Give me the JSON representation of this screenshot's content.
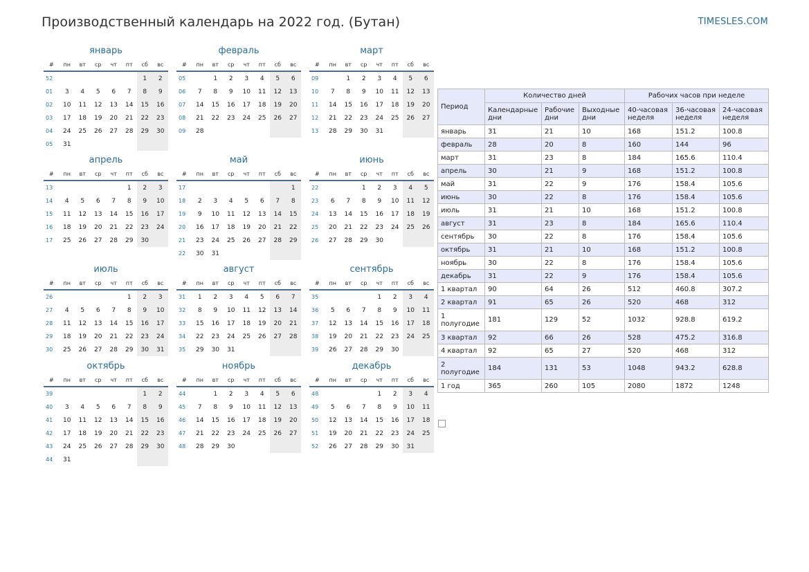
{
  "header": {
    "title": "Производственный календарь на 2022 год. (Бутан)",
    "site": "TIMESLES.COM"
  },
  "weekday_headers": [
    "#",
    "пн",
    "вт",
    "ср",
    "чт",
    "пт",
    "сб",
    "вс"
  ],
  "months": [
    {
      "name": "январь",
      "weeks": [
        [
          "52",
          "",
          "",
          "",
          "",
          "",
          "1",
          "2"
        ],
        [
          "01",
          "3",
          "4",
          "5",
          "6",
          "7",
          "8",
          "9"
        ],
        [
          "02",
          "10",
          "11",
          "12",
          "13",
          "14",
          "15",
          "16"
        ],
        [
          "03",
          "17",
          "18",
          "19",
          "20",
          "21",
          "22",
          "23"
        ],
        [
          "04",
          "24",
          "25",
          "26",
          "27",
          "28",
          "29",
          "30"
        ],
        [
          "05",
          "31",
          "",
          "",
          "",
          "",
          "",
          ""
        ]
      ]
    },
    {
      "name": "февраль",
      "weeks": [
        [
          "05",
          "",
          "1",
          "2",
          "3",
          "4",
          "5",
          "6"
        ],
        [
          "06",
          "7",
          "8",
          "9",
          "10",
          "11",
          "12",
          "13"
        ],
        [
          "07",
          "14",
          "15",
          "16",
          "17",
          "18",
          "19",
          "20"
        ],
        [
          "08",
          "21",
          "22",
          "23",
          "24",
          "25",
          "26",
          "27"
        ],
        [
          "09",
          "28",
          "",
          "",
          "",
          "",
          "",
          ""
        ]
      ]
    },
    {
      "name": "март",
      "weeks": [
        [
          "09",
          "",
          "1",
          "2",
          "3",
          "4",
          "5",
          "6"
        ],
        [
          "10",
          "7",
          "8",
          "9",
          "10",
          "11",
          "12",
          "13"
        ],
        [
          "11",
          "14",
          "15",
          "16",
          "17",
          "18",
          "19",
          "20"
        ],
        [
          "12",
          "21",
          "22",
          "23",
          "24",
          "25",
          "26",
          "27"
        ],
        [
          "13",
          "28",
          "29",
          "30",
          "31",
          "",
          "",
          ""
        ]
      ]
    },
    {
      "name": "апрель",
      "weeks": [
        [
          "13",
          "",
          "",
          "",
          "",
          "1",
          "2",
          "3"
        ],
        [
          "14",
          "4",
          "5",
          "6",
          "7",
          "8",
          "9",
          "10"
        ],
        [
          "15",
          "11",
          "12",
          "13",
          "14",
          "15",
          "16",
          "17"
        ],
        [
          "16",
          "18",
          "19",
          "20",
          "21",
          "22",
          "23",
          "24"
        ],
        [
          "17",
          "25",
          "26",
          "27",
          "28",
          "29",
          "30",
          ""
        ]
      ]
    },
    {
      "name": "май",
      "weeks": [
        [
          "17",
          "",
          "",
          "",
          "",
          "",
          "",
          "1"
        ],
        [
          "18",
          "2",
          "3",
          "4",
          "5",
          "6",
          "7",
          "8"
        ],
        [
          "19",
          "9",
          "10",
          "11",
          "12",
          "13",
          "14",
          "15"
        ],
        [
          "20",
          "16",
          "17",
          "18",
          "19",
          "20",
          "21",
          "22"
        ],
        [
          "21",
          "23",
          "24",
          "25",
          "26",
          "27",
          "28",
          "29"
        ],
        [
          "22",
          "30",
          "31",
          "",
          "",
          "",
          "",
          ""
        ]
      ]
    },
    {
      "name": "июнь",
      "weeks": [
        [
          "22",
          "",
          "",
          "1",
          "2",
          "3",
          "4",
          "5"
        ],
        [
          "23",
          "6",
          "7",
          "8",
          "9",
          "10",
          "11",
          "12"
        ],
        [
          "24",
          "13",
          "14",
          "15",
          "16",
          "17",
          "18",
          "19"
        ],
        [
          "25",
          "20",
          "21",
          "22",
          "23",
          "24",
          "25",
          "26"
        ],
        [
          "26",
          "27",
          "28",
          "29",
          "30",
          "",
          "",
          ""
        ]
      ]
    },
    {
      "name": "июль",
      "weeks": [
        [
          "26",
          "",
          "",
          "",
          "",
          "1",
          "2",
          "3"
        ],
        [
          "27",
          "4",
          "5",
          "6",
          "7",
          "8",
          "9",
          "10"
        ],
        [
          "28",
          "11",
          "12",
          "13",
          "14",
          "15",
          "16",
          "17"
        ],
        [
          "29",
          "18",
          "19",
          "20",
          "21",
          "22",
          "23",
          "24"
        ],
        [
          "30",
          "25",
          "26",
          "27",
          "28",
          "29",
          "30",
          "31"
        ]
      ]
    },
    {
      "name": "август",
      "weeks": [
        [
          "31",
          "1",
          "2",
          "3",
          "4",
          "5",
          "6",
          "7"
        ],
        [
          "32",
          "8",
          "9",
          "10",
          "11",
          "12",
          "13",
          "14"
        ],
        [
          "33",
          "15",
          "16",
          "17",
          "18",
          "19",
          "20",
          "21"
        ],
        [
          "34",
          "22",
          "23",
          "24",
          "25",
          "26",
          "27",
          "28"
        ],
        [
          "35",
          "29",
          "30",
          "31",
          "",
          "",
          "",
          ""
        ]
      ]
    },
    {
      "name": "сентябрь",
      "weeks": [
        [
          "35",
          "",
          "",
          "",
          "1",
          "2",
          "3",
          "4"
        ],
        [
          "36",
          "5",
          "6",
          "7",
          "8",
          "9",
          "10",
          "11"
        ],
        [
          "37",
          "12",
          "13",
          "14",
          "15",
          "16",
          "17",
          "18"
        ],
        [
          "38",
          "19",
          "20",
          "21",
          "22",
          "23",
          "24",
          "25"
        ],
        [
          "39",
          "26",
          "27",
          "28",
          "29",
          "30",
          "",
          ""
        ]
      ]
    },
    {
      "name": "октябрь",
      "weeks": [
        [
          "39",
          "",
          "",
          "",
          "",
          "",
          "1",
          "2"
        ],
        [
          "40",
          "3",
          "4",
          "5",
          "6",
          "7",
          "8",
          "9"
        ],
        [
          "41",
          "10",
          "11",
          "12",
          "13",
          "14",
          "15",
          "16"
        ],
        [
          "42",
          "17",
          "18",
          "19",
          "20",
          "21",
          "22",
          "23"
        ],
        [
          "43",
          "24",
          "25",
          "26",
          "27",
          "28",
          "29",
          "30"
        ],
        [
          "44",
          "31",
          "",
          "",
          "",
          "",
          "",
          ""
        ]
      ]
    },
    {
      "name": "ноябрь",
      "weeks": [
        [
          "44",
          "",
          "1",
          "2",
          "3",
          "4",
          "5",
          "6"
        ],
        [
          "45",
          "7",
          "8",
          "9",
          "10",
          "11",
          "12",
          "13"
        ],
        [
          "46",
          "14",
          "15",
          "16",
          "17",
          "18",
          "19",
          "20"
        ],
        [
          "47",
          "21",
          "22",
          "23",
          "24",
          "25",
          "26",
          "27"
        ],
        [
          "48",
          "28",
          "29",
          "30",
          "",
          "",
          "",
          ""
        ]
      ]
    },
    {
      "name": "декабрь",
      "weeks": [
        [
          "48",
          "",
          "",
          "",
          "1",
          "2",
          "3",
          "4"
        ],
        [
          "49",
          "5",
          "6",
          "7",
          "8",
          "9",
          "10",
          "11"
        ],
        [
          "50",
          "12",
          "13",
          "14",
          "15",
          "16",
          "17",
          "18"
        ],
        [
          "51",
          "19",
          "20",
          "21",
          "22",
          "23",
          "24",
          "25"
        ],
        [
          "52",
          "26",
          "27",
          "28",
          "29",
          "30",
          "31",
          ""
        ]
      ]
    }
  ],
  "summary": {
    "period_label": "Период",
    "group_days": "Количество дней",
    "group_hours": "Рабочих часов при неделе",
    "columns": [
      "Календарные дни",
      "Рабочие дни",
      "Выходные дни",
      "40-часовая неделя",
      "36-часовая неделя",
      "24-часовая неделя"
    ],
    "rows": [
      [
        "январь",
        "31",
        "21",
        "10",
        "168",
        "151.2",
        "100.8"
      ],
      [
        "февраль",
        "28",
        "20",
        "8",
        "160",
        "144",
        "96"
      ],
      [
        "март",
        "31",
        "23",
        "8",
        "184",
        "165.6",
        "110.4"
      ],
      [
        "апрель",
        "30",
        "21",
        "9",
        "168",
        "151.2",
        "100.8"
      ],
      [
        "май",
        "31",
        "22",
        "9",
        "176",
        "158.4",
        "105.6"
      ],
      [
        "июнь",
        "30",
        "22",
        "8",
        "176",
        "158.4",
        "105.6"
      ],
      [
        "июль",
        "31",
        "21",
        "10",
        "168",
        "151.2",
        "100.8"
      ],
      [
        "август",
        "31",
        "23",
        "8",
        "184",
        "165.6",
        "110.4"
      ],
      [
        "сентябрь",
        "30",
        "22",
        "8",
        "176",
        "158.4",
        "105.6"
      ],
      [
        "октябрь",
        "31",
        "21",
        "10",
        "168",
        "151.2",
        "100.8"
      ],
      [
        "ноябрь",
        "30",
        "22",
        "8",
        "176",
        "158.4",
        "105.6"
      ],
      [
        "декабрь",
        "31",
        "22",
        "9",
        "176",
        "158.4",
        "105.6"
      ],
      [
        "1 квартал",
        "90",
        "64",
        "26",
        "512",
        "460.8",
        "307.2"
      ],
      [
        "2 квартал",
        "91",
        "65",
        "26",
        "520",
        "468",
        "312"
      ],
      [
        "1 полугодие",
        "181",
        "129",
        "52",
        "1032",
        "928.8",
        "619.2"
      ],
      [
        "3 квартал",
        "92",
        "66",
        "26",
        "528",
        "475.2",
        "316.8"
      ],
      [
        "4 квартал",
        "92",
        "65",
        "27",
        "520",
        "468",
        "312"
      ],
      [
        "2 полугодие",
        "184",
        "131",
        "53",
        "1048",
        "943.2",
        "628.8"
      ],
      [
        "1 год",
        "365",
        "260",
        "105",
        "2080",
        "1872",
        "1248"
      ]
    ]
  }
}
